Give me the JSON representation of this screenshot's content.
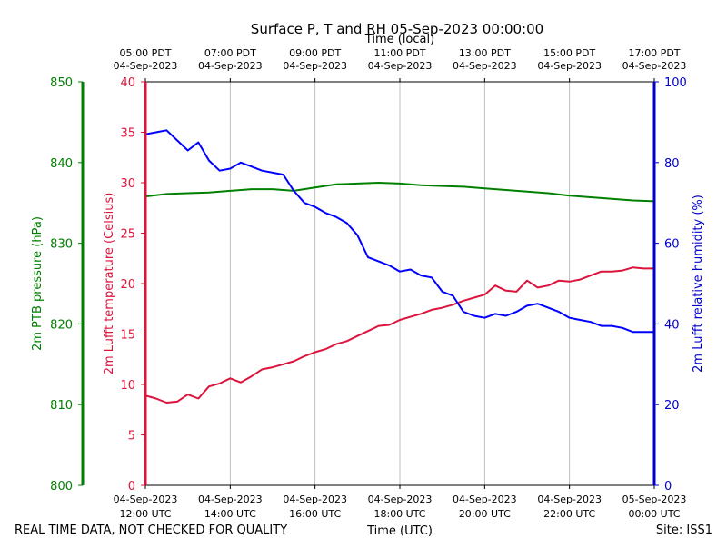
{
  "chart_data": {
    "type": "line",
    "title": "Surface P, T and RH 05-Sep-2023 00:00:00",
    "top_axis_label": "Time (local)",
    "xlabel": "Time (UTC)",
    "footer_left": "REAL TIME DATA, NOT CHECKED FOR QUALITY",
    "footer_right": "Site: ISS1",
    "x_range_utc_hours": [
      12,
      24
    ],
    "x_ticks": [
      {
        "utc_hour": 12,
        "bottom": [
          "04-Sep-2023",
          "12:00 UTC"
        ],
        "top": [
          "05:00 PDT",
          "04-Sep-2023"
        ]
      },
      {
        "utc_hour": 14,
        "bottom": [
          "04-Sep-2023",
          "14:00 UTC"
        ],
        "top": [
          "07:00 PDT",
          "04-Sep-2023"
        ]
      },
      {
        "utc_hour": 16,
        "bottom": [
          "04-Sep-2023",
          "16:00 UTC"
        ],
        "top": [
          "09:00 PDT",
          "04-Sep-2023"
        ]
      },
      {
        "utc_hour": 18,
        "bottom": [
          "04-Sep-2023",
          "18:00 UTC"
        ],
        "top": [
          "11:00 PDT",
          "04-Sep-2023"
        ]
      },
      {
        "utc_hour": 20,
        "bottom": [
          "04-Sep-2023",
          "20:00 UTC"
        ],
        "top": [
          "13:00 PDT",
          "04-Sep-2023"
        ]
      },
      {
        "utc_hour": 22,
        "bottom": [
          "04-Sep-2023",
          "22:00 UTC"
        ],
        "top": [
          "15:00 PDT",
          "04-Sep-2023"
        ]
      },
      {
        "utc_hour": 24,
        "bottom": [
          "05-Sep-2023",
          "00:00 UTC"
        ],
        "top": [
          "17:00 PDT",
          "04-Sep-2023"
        ]
      }
    ],
    "grid": "vertical",
    "axes": {
      "pressure": {
        "label": "2m PTB pressure (hPa)",
        "range": [
          800,
          850
        ],
        "ticks": [
          800,
          810,
          820,
          830,
          840,
          850
        ],
        "color": "#007f00"
      },
      "temperature": {
        "label": "2m Lufft temperature (Celsius)",
        "range": [
          0,
          40
        ],
        "ticks": [
          0,
          5,
          10,
          15,
          20,
          25,
          30,
          35,
          40
        ],
        "color": "#dc143c"
      },
      "humidity": {
        "label": "2m Lufft relative humidity (%)",
        "range": [
          0,
          100
        ],
        "ticks": [
          0,
          20,
          40,
          60,
          80,
          100
        ],
        "color": "#0000cd"
      }
    },
    "series": [
      {
        "name": "pressure",
        "axis": "pressure",
        "color": "#008000",
        "x": [
          12.0,
          12.5,
          13.0,
          13.5,
          14.0,
          14.5,
          15.0,
          15.5,
          16.0,
          16.5,
          17.0,
          17.5,
          18.0,
          18.5,
          19.0,
          19.5,
          20.0,
          20.5,
          21.0,
          21.5,
          22.0,
          22.5,
          23.0,
          23.5,
          24.0
        ],
        "y": [
          835.8,
          836.1,
          836.2,
          836.3,
          836.5,
          836.7,
          836.7,
          836.5,
          836.9,
          837.3,
          837.4,
          837.5,
          837.4,
          837.2,
          837.1,
          837.0,
          836.8,
          836.6,
          836.4,
          836.2,
          835.9,
          835.7,
          835.5,
          835.3,
          835.2
        ]
      },
      {
        "name": "temperature",
        "axis": "temperature",
        "color": "#dc143c",
        "x": [
          12.0,
          12.25,
          12.5,
          12.75,
          13.0,
          13.25,
          13.5,
          13.75,
          14.0,
          14.25,
          14.5,
          14.75,
          15.0,
          15.25,
          15.5,
          15.75,
          16.0,
          16.25,
          16.5,
          16.75,
          17.0,
          17.25,
          17.5,
          17.75,
          18.0,
          18.25,
          18.5,
          18.75,
          19.0,
          19.25,
          19.5,
          19.75,
          20.0,
          20.25,
          20.5,
          20.75,
          21.0,
          21.25,
          21.5,
          21.75,
          22.0,
          22.25,
          22.5,
          22.75,
          23.0,
          23.25,
          23.5,
          23.75,
          24.0
        ],
        "y": [
          8.9,
          8.6,
          8.2,
          8.3,
          9.0,
          8.6,
          9.8,
          10.1,
          10.6,
          10.2,
          10.8,
          11.5,
          11.7,
          12.0,
          12.3,
          12.8,
          13.2,
          13.5,
          14.0,
          14.3,
          14.8,
          15.3,
          15.8,
          15.9,
          16.4,
          16.7,
          17.0,
          17.4,
          17.6,
          17.9,
          18.3,
          18.6,
          18.9,
          19.8,
          19.3,
          19.2,
          20.3,
          19.6,
          19.8,
          20.3,
          20.2,
          20.4,
          20.8,
          21.2,
          21.2,
          21.3,
          21.6,
          21.5,
          21.5
        ]
      },
      {
        "name": "humidity",
        "axis": "humidity",
        "color": "#0000ff",
        "x": [
          12.0,
          12.25,
          12.5,
          12.75,
          13.0,
          13.25,
          13.5,
          13.75,
          14.0,
          14.25,
          14.5,
          14.75,
          15.0,
          15.25,
          15.5,
          15.75,
          16.0,
          16.25,
          16.5,
          16.75,
          17.0,
          17.25,
          17.5,
          17.75,
          18.0,
          18.25,
          18.5,
          18.75,
          19.0,
          19.25,
          19.5,
          19.75,
          20.0,
          20.25,
          20.5,
          20.75,
          21.0,
          21.25,
          21.5,
          21.75,
          22.0,
          22.25,
          22.5,
          22.75,
          23.0,
          23.25,
          23.5,
          23.75,
          24.0
        ],
        "y": [
          87.0,
          87.5,
          88.0,
          85.5,
          83.0,
          85.0,
          80.5,
          78.0,
          78.5,
          80.0,
          79.0,
          78.0,
          77.5,
          77.0,
          73.0,
          70.0,
          69.0,
          67.5,
          66.5,
          65.0,
          62.0,
          56.5,
          55.5,
          54.5,
          53.0,
          53.5,
          52.0,
          51.5,
          48.0,
          47.0,
          43.0,
          42.0,
          41.5,
          42.5,
          42.0,
          43.0,
          44.5,
          45.0,
          44.0,
          43.0,
          41.5,
          41.0,
          40.5,
          39.5,
          39.5,
          39.0,
          38.0,
          38.0,
          38.0
        ]
      }
    ]
  }
}
